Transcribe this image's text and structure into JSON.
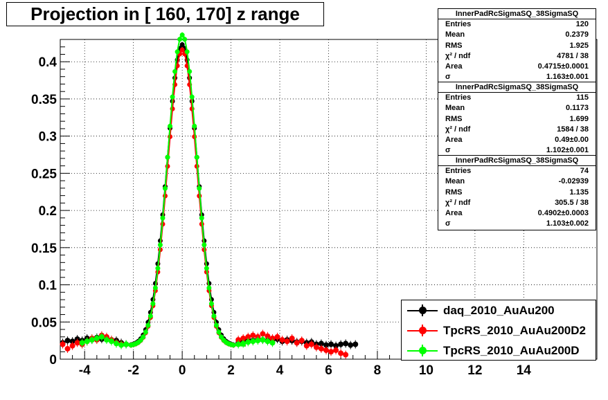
{
  "title": "Projection in [ 160, 170] z range",
  "stats_boxes": [
    {
      "name": "InnerPadRcSigmaSQ_38SigmaSQ",
      "rows": [
        [
          "Entries",
          "120"
        ],
        [
          "Mean",
          "0.2379"
        ],
        [
          "RMS",
          "1.925"
        ],
        [
          "χ² / ndf",
          "4781 / 38"
        ],
        [
          "Area",
          "0.4715±0.0001"
        ],
        [
          "σ",
          "1.163±0.001"
        ]
      ]
    },
    {
      "name": "InnerPadRcSigmaSQ_38SigmaSQ",
      "rows": [
        [
          "Entries",
          "115"
        ],
        [
          "Mean",
          "0.1173"
        ],
        [
          "RMS",
          "1.699"
        ],
        [
          "χ² / ndf",
          "1584 / 38"
        ],
        [
          "Area",
          "0.49±0.00"
        ],
        [
          "σ",
          "1.102±0.001"
        ]
      ]
    },
    {
      "name": "InnerPadRcSigmaSQ_38SigmaSQ",
      "rows": [
        [
          "Entries",
          "74"
        ],
        [
          "Mean",
          "-0.02939"
        ],
        [
          "RMS",
          "1.135"
        ],
        [
          "χ² / ndf",
          "305.5 / 38"
        ],
        [
          "Area",
          "0.4902±0.0003"
        ],
        [
          "σ",
          "1.103±0.002"
        ]
      ]
    }
  ],
  "legend": {
    "entries": [
      {
        "label": "daq_2010_AuAu200",
        "color": "#000000"
      },
      {
        "label": "TpcRS_2010_AuAu200D2",
        "color": "#ff0000"
      },
      {
        "label": "TpcRS_2010_AuAu200D",
        "color": "#00ff00"
      }
    ]
  },
  "chart_data": {
    "type": "scatter",
    "title": "Projection in [ 160, 170] z range",
    "xlabel": "",
    "ylabel": "",
    "xlim": [
      -5,
      17
    ],
    "ylim": [
      0,
      0.43
    ],
    "xticks": [
      -4,
      -2,
      0,
      2,
      4,
      6,
      8,
      10,
      12,
      14
    ],
    "yticks": [
      0,
      0.05,
      0.1,
      0.15,
      0.2,
      0.25,
      0.3,
      0.35,
      0.4
    ],
    "ytick_labels": [
      "0",
      "0.05",
      "0.1",
      "0.15",
      "0.2",
      "0.25",
      "0.3",
      "0.35",
      "0.4"
    ],
    "grid": true,
    "colors": {
      "daq": "#000000",
      "d2": "#ff0000",
      "d": "#00ff00"
    },
    "series": [
      {
        "name": "daq_2010_AuAu200",
        "color": "#000000",
        "amplitude": 0.405,
        "sigma": 0.62,
        "tail_x": [
          -4.9,
          -4.7,
          -4.5,
          -4.3,
          -4.1,
          -3.9,
          -3.7,
          -3.5,
          -3.3,
          -3.1,
          -2.9,
          -2.7,
          -2.5,
          -2.3,
          2.3,
          2.5,
          2.7,
          2.9,
          3.1,
          3.3,
          3.5,
          3.7,
          3.9,
          4.1,
          4.3,
          4.5,
          4.7,
          4.9,
          5.1,
          5.3,
          5.5,
          5.7,
          5.9,
          6.1,
          6.3,
          6.5,
          6.7,
          6.9,
          7.1
        ],
        "tail_y": [
          0.022,
          0.025,
          0.024,
          0.027,
          0.025,
          0.028,
          0.026,
          0.029,
          0.027,
          0.028,
          0.026,
          0.025,
          0.022,
          0.02,
          0.022,
          0.024,
          0.026,
          0.025,
          0.027,
          0.026,
          0.025,
          0.026,
          0.027,
          0.024,
          0.026,
          0.025,
          0.023,
          0.024,
          0.022,
          0.023,
          0.02,
          0.021,
          0.019,
          0.02,
          0.018,
          0.02,
          0.021,
          0.019,
          0.02
        ]
      },
      {
        "name": "TpcRS_2010_AuAu200D2",
        "color": "#ff0000",
        "amplitude": 0.398,
        "sigma": 0.6,
        "tail_x": [
          -4.9,
          -4.7,
          -4.5,
          -4.3,
          -4.1,
          -3.9,
          -3.7,
          -3.5,
          -3.3,
          -3.1,
          -2.9,
          -2.7,
          -2.5,
          2.3,
          2.5,
          2.7,
          2.9,
          3.1,
          3.3,
          3.5,
          3.7,
          3.9,
          4.1,
          4.3,
          4.5,
          4.7,
          4.9,
          5.1,
          5.3,
          5.5,
          5.7,
          5.9,
          6.1,
          6.3,
          6.5,
          6.7
        ],
        "tail_y": [
          0.02,
          0.014,
          0.018,
          0.022,
          0.02,
          0.024,
          0.028,
          0.026,
          0.032,
          0.03,
          0.026,
          0.022,
          0.02,
          0.026,
          0.028,
          0.03,
          0.032,
          0.03,
          0.034,
          0.031,
          0.028,
          0.03,
          0.026,
          0.024,
          0.028,
          0.022,
          0.025,
          0.018,
          0.02,
          0.016,
          0.014,
          0.012,
          0.01,
          0.012,
          0.008,
          0.006
        ]
      },
      {
        "name": "TpcRS_2010_AuAu200D",
        "color": "#00ff00",
        "amplitude": 0.418,
        "sigma": 0.6,
        "tail_x": [
          -4.1,
          -3.9,
          -3.7,
          -3.5,
          -3.3,
          -3.1,
          -2.9,
          -2.7,
          -2.5,
          -2.3,
          2.3,
          2.5,
          2.7,
          2.9,
          3.1,
          3.3,
          3.5,
          3.7
        ],
        "tail_y": [
          0.022,
          0.024,
          0.026,
          0.028,
          0.03,
          0.026,
          0.024,
          0.021,
          0.019,
          0.02,
          0.02,
          0.021,
          0.023,
          0.024,
          0.025,
          0.026,
          0.024,
          0.022
        ]
      }
    ]
  }
}
